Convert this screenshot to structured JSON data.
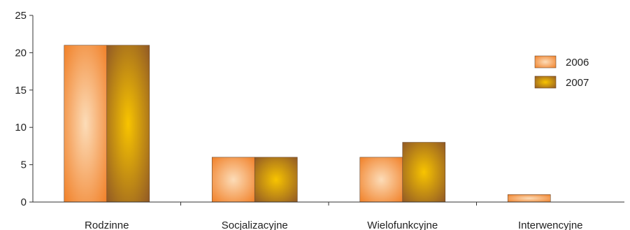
{
  "chart_data": {
    "type": "bar",
    "categories": [
      "Rodzinne",
      "Socjalizacyjne",
      "Wielofunkcyjne",
      "Interwencyjne"
    ],
    "series": [
      {
        "name": "2006",
        "values": [
          21,
          6,
          6,
          1
        ]
      },
      {
        "name": "2007",
        "values": [
          21,
          6,
          8,
          0
        ]
      }
    ],
    "yticks": [
      0,
      5,
      10,
      15,
      20,
      25
    ],
    "ylim": [
      0,
      25
    ],
    "grid": false,
    "legend_position": "right",
    "title": "",
    "xlabel": "",
    "ylabel": "",
    "colors": {
      "2006": {
        "edge": "#f07a1e",
        "center": "#fcdcb8"
      },
      "2007": {
        "edge": "#8a5228",
        "center": "#f8c400"
      }
    }
  }
}
